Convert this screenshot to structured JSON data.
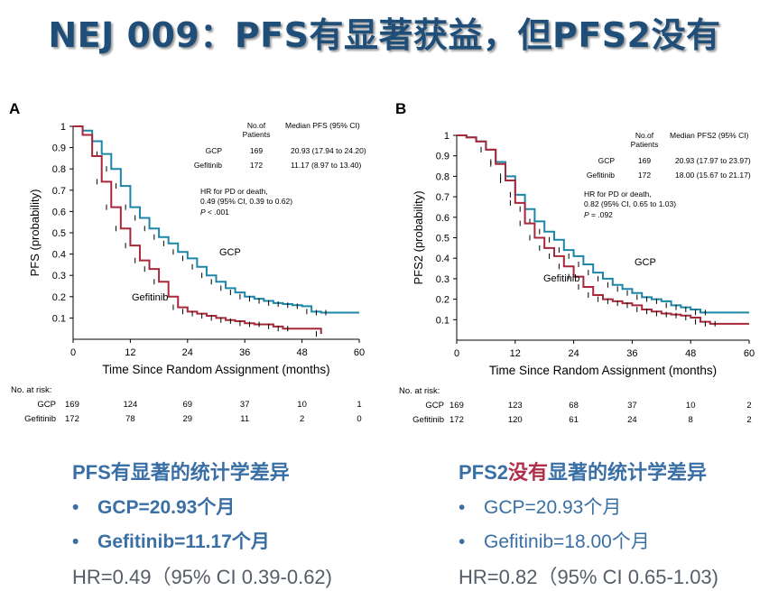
{
  "slide": {
    "title": "NEJ 009：PFS有显著获益，但PFS2没有"
  },
  "colors": {
    "gcp": "#1c86a8",
    "gefitinib": "#a8283a",
    "text": "#000000",
    "accent": "#3a6fa6",
    "accent_red": "#b0304a"
  },
  "chart_data": [
    {
      "type": "line",
      "panel_label": "A",
      "title": "",
      "xlabel": "Time Since Random Assignment (months)",
      "ylabel": "PFS (probability)",
      "xlim": [
        0,
        60
      ],
      "ylim": [
        0,
        1
      ],
      "xticks": [
        "0",
        "12",
        "24",
        "36",
        "48",
        "60"
      ],
      "yticks": [
        "0.1",
        "0.2",
        "0.3",
        "0.4",
        "0.5",
        "0.6",
        "0.7",
        "0.8",
        "0.9",
        "1"
      ],
      "series": [
        {
          "name": "GCP",
          "color": "#1c86a8",
          "x": [
            0,
            2,
            4,
            6,
            8,
            10,
            12,
            14,
            16,
            18,
            20,
            22,
            24,
            26,
            28,
            30,
            32,
            34,
            36,
            38,
            40,
            42,
            44,
            46,
            48,
            50,
            52,
            60
          ],
          "y": [
            1,
            0.98,
            0.93,
            0.87,
            0.8,
            0.72,
            0.62,
            0.57,
            0.52,
            0.48,
            0.45,
            0.41,
            0.38,
            0.34,
            0.3,
            0.27,
            0.24,
            0.22,
            0.2,
            0.19,
            0.18,
            0.17,
            0.165,
            0.16,
            0.155,
            0.13,
            0.125,
            0.125
          ]
        },
        {
          "name": "Gefitinib",
          "color": "#a8283a",
          "x": [
            0,
            2,
            4,
            6,
            8,
            10,
            12,
            14,
            16,
            18,
            20,
            22,
            24,
            26,
            28,
            30,
            32,
            34,
            36,
            38,
            40,
            42,
            44,
            50,
            52
          ],
          "y": [
            1,
            0.96,
            0.86,
            0.74,
            0.62,
            0.52,
            0.44,
            0.37,
            0.33,
            0.27,
            0.2,
            0.15,
            0.13,
            0.12,
            0.11,
            0.1,
            0.09,
            0.085,
            0.075,
            0.07,
            0.07,
            0.06,
            0.05,
            0.05,
            0.025
          ]
        }
      ],
      "curve_labels": [
        "GCP",
        "Gefitinib"
      ],
      "legend": {
        "col1": "No.of Patients",
        "col2": "Median PFS (95% CI)",
        "rows": [
          {
            "name": "GCP",
            "n": "169",
            "median": "20.93 (17.94 to 24.20)"
          },
          {
            "name": "Gefitinib",
            "n": "172",
            "median": "11.17 (8.97 to 13.40)"
          }
        ]
      },
      "hr_lines": [
        "HR for PD or death,",
        "0.49 (95% CI, 0.39 to 0.62)"
      ],
      "p_label": "P",
      "p_value": " < .001",
      "risk": {
        "title": "No. at risk:",
        "rows": [
          {
            "name": "GCP",
            "values": [
              "169",
              "124",
              "69",
              "37",
              "10",
              "1"
            ]
          },
          {
            "name": "Gefitinib",
            "values": [
              "172",
              "78",
              "29",
              "11",
              "2",
              "0"
            ]
          }
        ]
      }
    },
    {
      "type": "line",
      "panel_label": "B",
      "title": "",
      "xlabel": "Time Since Random Assignment (months)",
      "ylabel": "PFS2 (probability)",
      "xlim": [
        0,
        60
      ],
      "ylim": [
        0,
        1
      ],
      "xticks": [
        "0",
        "12",
        "24",
        "36",
        "48",
        "60"
      ],
      "yticks": [
        "0.1",
        "0.2",
        "0.3",
        "0.4",
        "0.5",
        "0.6",
        "0.7",
        "0.8",
        "0.9",
        "1"
      ],
      "series": [
        {
          "name": "GCP",
          "color": "#1c86a8",
          "x": [
            0,
            2,
            4,
            6,
            8,
            10,
            12,
            14,
            16,
            18,
            20,
            22,
            24,
            26,
            28,
            30,
            32,
            34,
            36,
            38,
            40,
            42,
            44,
            46,
            48,
            50,
            60
          ],
          "y": [
            1,
            0.99,
            0.97,
            0.93,
            0.87,
            0.8,
            0.71,
            0.64,
            0.58,
            0.53,
            0.49,
            0.44,
            0.41,
            0.37,
            0.33,
            0.3,
            0.27,
            0.25,
            0.23,
            0.21,
            0.2,
            0.19,
            0.17,
            0.16,
            0.15,
            0.135,
            0.135
          ]
        },
        {
          "name": "Gefitinib",
          "color": "#a8283a",
          "x": [
            0,
            2,
            4,
            6,
            8,
            10,
            12,
            14,
            16,
            18,
            20,
            22,
            24,
            26,
            28,
            30,
            32,
            34,
            36,
            38,
            40,
            42,
            44,
            46,
            48,
            50,
            52,
            60
          ],
          "y": [
            1,
            0.99,
            0.97,
            0.93,
            0.86,
            0.78,
            0.67,
            0.57,
            0.5,
            0.45,
            0.41,
            0.36,
            0.31,
            0.26,
            0.22,
            0.2,
            0.19,
            0.18,
            0.17,
            0.15,
            0.14,
            0.13,
            0.125,
            0.12,
            0.11,
            0.09,
            0.08,
            0.08
          ]
        }
      ],
      "curve_labels": [
        "GCP",
        "Gefitinib"
      ],
      "legend": {
        "col1": "No.of Patients",
        "col2": "Median PFS2 (95% CI)",
        "rows": [
          {
            "name": "GCP",
            "n": "169",
            "median": "20.93 (17.97 to 23.97)"
          },
          {
            "name": "Gefitinib",
            "n": "172",
            "median": "18.00 (15.67 to 21.17)"
          }
        ]
      },
      "hr_lines": [
        "HR for PD or death,",
        "0.82 (95% CI, 0.65 to 1.03)"
      ],
      "p_label": "P",
      "p_value": " = .092",
      "risk": {
        "title": "No. at risk:",
        "rows": [
          {
            "name": "GCP",
            "values": [
              "169",
              "123",
              "68",
              "37",
              "10",
              "2"
            ]
          },
          {
            "name": "Gefitinib",
            "values": [
              "172",
              "120",
              "61",
              "24",
              "8",
              "2"
            ]
          }
        ]
      }
    }
  ],
  "conclusions": {
    "left": {
      "heading": "PFS有显著的统计学差异",
      "bullet_1": "GCP=20.93个月",
      "bullet_2": "Gefitinib=11.17个月",
      "hr": "HR=0.49（95% CI 0.39-0.62)"
    },
    "right": {
      "heading_a": "PFS2",
      "heading_b": "没有",
      "heading_c": "显著的统计学差异",
      "bullet_1": "GCP=20.93个月",
      "bullet_2": "Gefitinib=18.00个月",
      "hr": "HR=0.82（95% CI 0.65-1.03)"
    }
  }
}
